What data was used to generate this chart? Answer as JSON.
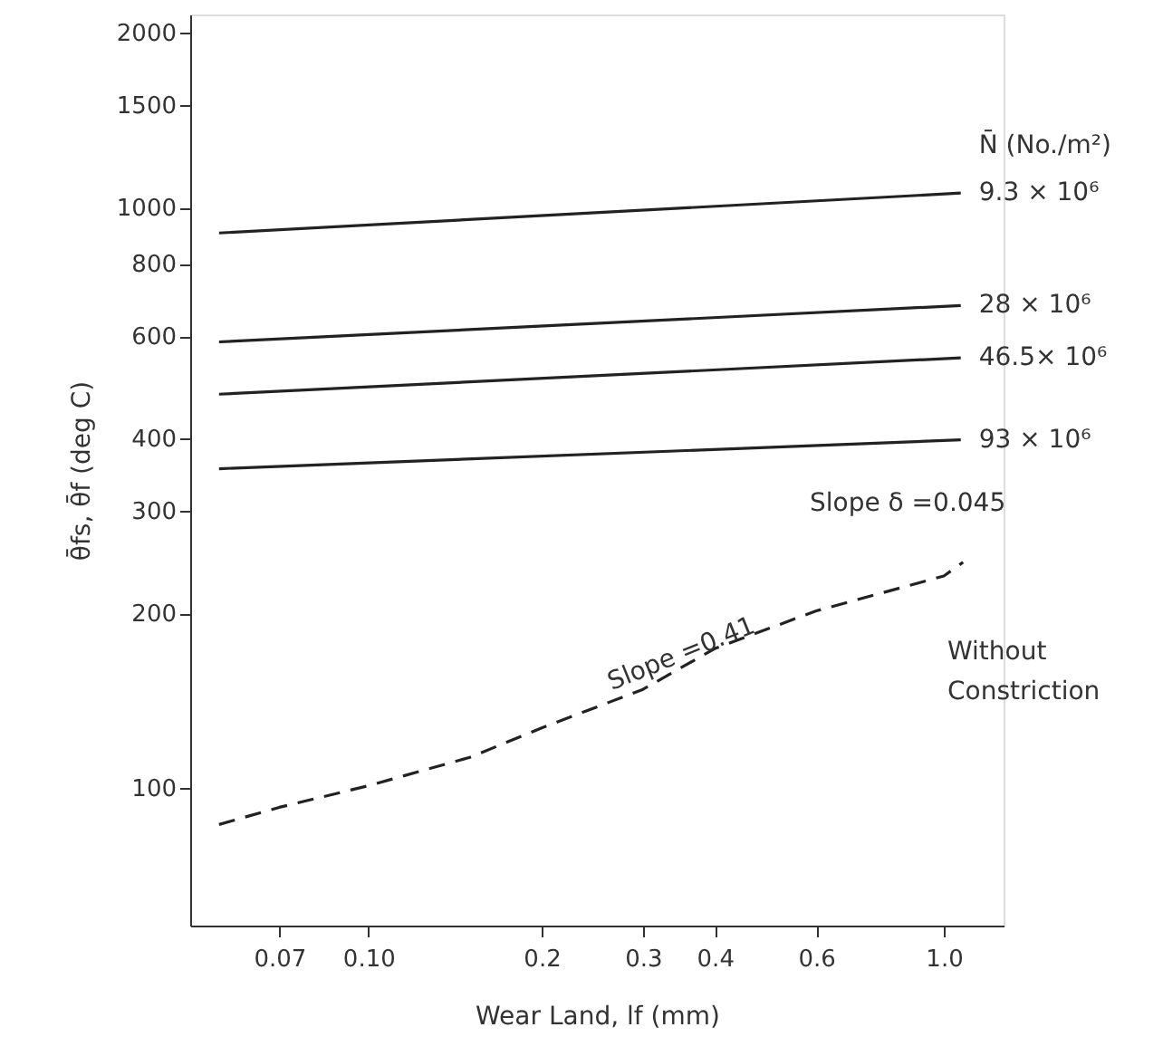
{
  "chart_data": {
    "type": "line",
    "xlabel": "Wear Land, lf (mm)",
    "ylabel": "θ̄fs, θ̄f (deg C)",
    "legend_title": "N̄ (No./m²)",
    "log": "xy",
    "grid": false,
    "marker": "none",
    "xlim": [
      0.049,
      1.27
    ],
    "ylim": [
      58,
      2150
    ],
    "xticks": [
      0.07,
      {
        "value": 0.1,
        "label": "0.10"
      },
      0.2,
      0.3,
      0.4,
      0.6,
      {
        "value": 1,
        "label": "1.0"
      }
    ],
    "yticks": [
      100,
      200,
      300,
      400,
      600,
      800,
      1000,
      1500,
      2000
    ],
    "series": [
      {
        "name": "9.3 × 10⁶",
        "color": "#222222",
        "x": [
          0.055,
          1.07
        ],
        "values": [
          904,
          1059
        ]
      },
      {
        "name": "28 × 10⁶",
        "color": "#222222",
        "x": [
          0.055,
          1.07
        ],
        "values": [
          587,
          678
        ]
      },
      {
        "name": "46.5× 10⁶",
        "color": "#222222",
        "x": [
          0.055,
          1.07
        ],
        "values": [
          477,
          551
        ]
      },
      {
        "name": "93 × 10⁶",
        "color": "#222222",
        "x": [
          0.055,
          1.07
        ],
        "values": [
          355,
          398
        ]
      },
      {
        "color": "#222222",
        "line_style": "dashed",
        "x": [
          0.055,
          0.07,
          0.1,
          0.15,
          0.2,
          0.3,
          0.4,
          0.6,
          1.0,
          1.08
        ],
        "values": [
          86.6,
          92.7,
          101,
          113,
          127,
          148,
          174,
          202,
          232,
          245
        ]
      }
    ],
    "annotations": [
      "Slope δ =0.045",
      {
        "text": "Slope =0.41",
        "x": 0.35,
        "y": 170
      },
      "Without Constriction"
    ]
  }
}
